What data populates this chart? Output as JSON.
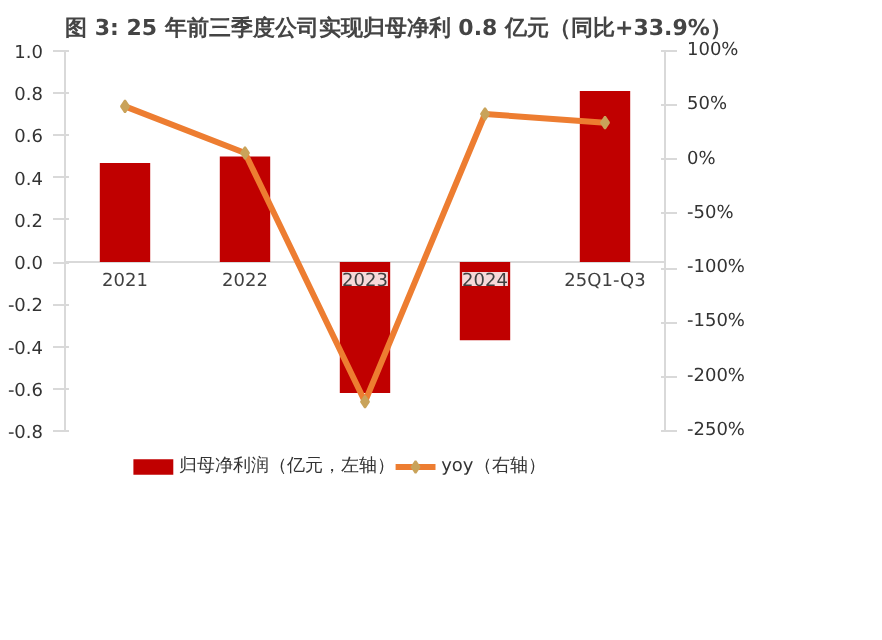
{
  "chart_data": {
    "type": "bar",
    "title": "图 3: 25 年前三季度公司实现归母净利 0.8 亿元（同比+33.9%）",
    "categories": [
      "2021",
      "2022",
      "2023",
      "2024",
      "25Q1-Q3"
    ],
    "series": [
      {
        "name": "归母净利润（亿元，左轴）",
        "color": "#c00000",
        "values": [
          0.47,
          0.5,
          -0.62,
          -0.37,
          0.81
        ]
      },
      {
        "name": "yoy（右轴）",
        "type": "line",
        "axis": "y2",
        "color": "#ed7d31",
        "marker": "diamond",
        "values": [
          49,
          6,
          -223,
          42,
          34
        ]
      }
    ],
    "ylim": [
      -0.8,
      1.0
    ],
    "yticks": [
      {
        "value": -0.8,
        "label": "-0.8"
      },
      {
        "value": -0.6,
        "label": "-0.6"
      },
      {
        "value": -0.4,
        "label": "-0.4"
      },
      {
        "value": -0.2,
        "label": "-0.2"
      },
      {
        "value": 0,
        "label": "0.0"
      },
      {
        "value": 0.2,
        "label": "0.2"
      },
      {
        "value": 0.4,
        "label": "0.4"
      },
      {
        "value": 0.6,
        "label": "0.6"
      },
      {
        "value": 0.8,
        "label": "0.8"
      },
      {
        "value": 1.0,
        "label": "1.0"
      }
    ],
    "y2lim": [
      -250,
      100
    ],
    "y2ticks": [
      {
        "value": -250,
        "label": "-250%"
      },
      {
        "value": -200,
        "label": "-200%"
      },
      {
        "value": -150,
        "label": "-150%"
      },
      {
        "value": -100,
        "label": "-100%"
      },
      {
        "value": -50,
        "label": "-50%"
      },
      {
        "value": 0,
        "label": "0%"
      },
      {
        "value": 50,
        "label": "50%"
      },
      {
        "value": 100,
        "label": "100%"
      }
    ],
    "grid": false,
    "legend": "bottom"
  }
}
